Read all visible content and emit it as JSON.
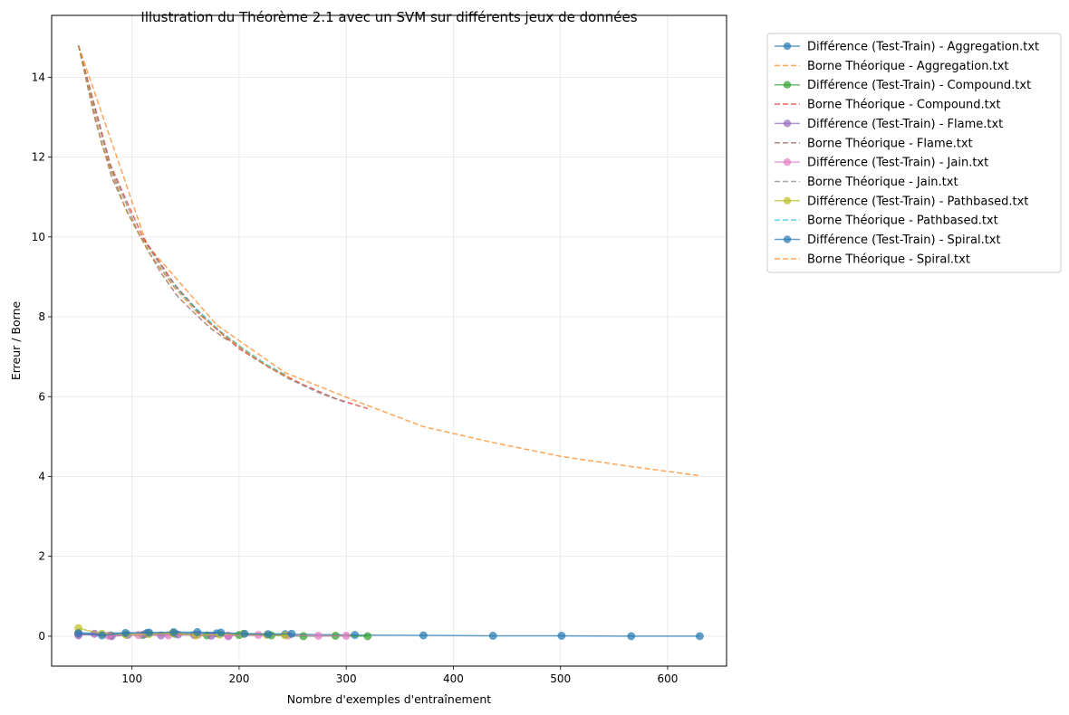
{
  "chart_data": {
    "type": "line",
    "title": "Illustration du Théorème 2.1 avec un SVM sur différents jeux de données",
    "xlabel": "Nombre d'exemples d'entraînement",
    "ylabel": "Erreur / Borne",
    "xlim": [
      25,
      655
    ],
    "ylim": [
      -0.75,
      15.55
    ],
    "xticks": [
      "100",
      "200",
      "300",
      "400",
      "500",
      "600"
    ],
    "xtick_values": [
      100,
      200,
      300,
      400,
      500,
      600
    ],
    "yticks": [
      "0",
      "2",
      "4",
      "6",
      "8",
      "10",
      "12",
      "14"
    ],
    "ytick_values": [
      0,
      2,
      4,
      6,
      8,
      10,
      12,
      14
    ],
    "grid": true,
    "legend_placement": "outside-top-right",
    "series": [
      {
        "name": "Différence (Test-Train) - Aggregation.txt",
        "kind": "diff",
        "color": "#1f77b4",
        "x": [
          50,
          114,
          179,
          243,
          308,
          372,
          437,
          501,
          566,
          630
        ],
        "y": [
          0.08,
          0.08,
          0.07,
          0.05,
          0.03,
          0.02,
          0.01,
          0.01,
          0.0,
          0.0
        ]
      },
      {
        "name": "Borne Théorique - Aggregation.txt",
        "kind": "bound",
        "color": "#ff7f0e",
        "x": [
          50,
          114,
          179,
          243,
          308,
          372,
          437,
          501,
          566,
          630
        ],
        "y": [
          14.8,
          9.8,
          7.8,
          6.6,
          5.9,
          5.25,
          4.85,
          4.5,
          4.25,
          4.02
        ]
      },
      {
        "name": "Différence (Test-Train) - Compound.txt",
        "kind": "diff",
        "color": "#2ca02c",
        "x": [
          50,
          80,
          110,
          140,
          170,
          200,
          230,
          260,
          290,
          320
        ],
        "y": [
          0.05,
          0.02,
          0.03,
          0.06,
          0.02,
          0.03,
          0.02,
          0.0,
          0.01,
          0.0
        ]
      },
      {
        "name": "Borne Théorique - Compound.txt",
        "kind": "bound",
        "color": "#d62728",
        "x": [
          50,
          80,
          110,
          140,
          170,
          200,
          230,
          260,
          290,
          320
        ],
        "y": [
          14.8,
          11.8,
          10.0,
          8.8,
          7.9,
          7.2,
          6.7,
          6.3,
          5.95,
          5.7
        ]
      },
      {
        "name": "Différence (Test-Train) - Flame.txt",
        "kind": "diff",
        "color": "#9467bd",
        "x": [
          50,
          65,
          81,
          96,
          112,
          127,
          143,
          158,
          174,
          190
        ],
        "y": [
          0.02,
          0.06,
          0.0,
          0.03,
          0.05,
          0.02,
          0.04,
          0.03,
          0.01,
          0.0
        ]
      },
      {
        "name": "Borne Théorique - Flame.txt",
        "kind": "bound",
        "color": "#8c564b",
        "x": [
          50,
          65,
          81,
          96,
          112,
          127,
          143,
          158,
          174,
          190
        ],
        "y": [
          14.8,
          13.0,
          11.5,
          10.6,
          9.8,
          9.1,
          8.5,
          8.1,
          7.7,
          7.4
        ]
      },
      {
        "name": "Différence (Test-Train) - Jain.txt",
        "kind": "diff",
        "color": "#e377c2",
        "x": [
          50,
          78,
          106,
          134,
          162,
          190,
          218,
          246,
          274,
          300
        ],
        "y": [
          0.05,
          0.01,
          0.03,
          0.02,
          0.04,
          0.01,
          0.03,
          0.02,
          0.01,
          0.01
        ]
      },
      {
        "name": "Borne Théorique - Jain.txt",
        "kind": "bound",
        "color": "#7f7f7f",
        "x": [
          50,
          78,
          106,
          134,
          162,
          190,
          218,
          246,
          274,
          300
        ],
        "y": [
          14.8,
          11.9,
          10.1,
          9.0,
          8.1,
          7.45,
          6.9,
          6.45,
          6.1,
          5.85
        ]
      },
      {
        "name": "Différence (Test-Train) - Pathbased.txt",
        "kind": "diff",
        "color": "#bcbd22",
        "x": [
          50,
          72,
          94,
          116,
          138,
          160,
          182,
          204,
          226,
          243
        ],
        "y": [
          0.2,
          0.06,
          0.04,
          0.05,
          0.08,
          0.02,
          0.04,
          0.06,
          0.03,
          0.02
        ]
      },
      {
        "name": "Borne Théorique - Pathbased.txt",
        "kind": "bound",
        "color": "#17becf",
        "x": [
          50,
          72,
          94,
          116,
          138,
          160,
          182,
          204,
          226,
          243
        ],
        "y": [
          14.8,
          12.3,
          10.7,
          9.6,
          8.8,
          8.2,
          7.65,
          7.2,
          6.8,
          6.55
        ]
      },
      {
        "name": "Différence (Test-Train) - Spiral.txt",
        "kind": "diff",
        "color": "#1f77b4",
        "x": [
          50,
          72,
          94,
          116,
          139,
          161,
          183,
          205,
          227,
          249
        ],
        "y": [
          0.07,
          0.02,
          0.08,
          0.09,
          0.1,
          0.1,
          0.09,
          0.06,
          0.05,
          0.06
        ]
      },
      {
        "name": "Borne Théorique - Spiral.txt",
        "kind": "bound",
        "color": "#ff7f0e",
        "x": [
          50,
          72,
          94,
          116,
          139,
          161,
          183,
          205,
          227,
          249
        ],
        "y": [
          14.8,
          12.3,
          10.7,
          9.6,
          8.75,
          8.1,
          7.6,
          7.15,
          6.75,
          6.45
        ]
      }
    ]
  }
}
